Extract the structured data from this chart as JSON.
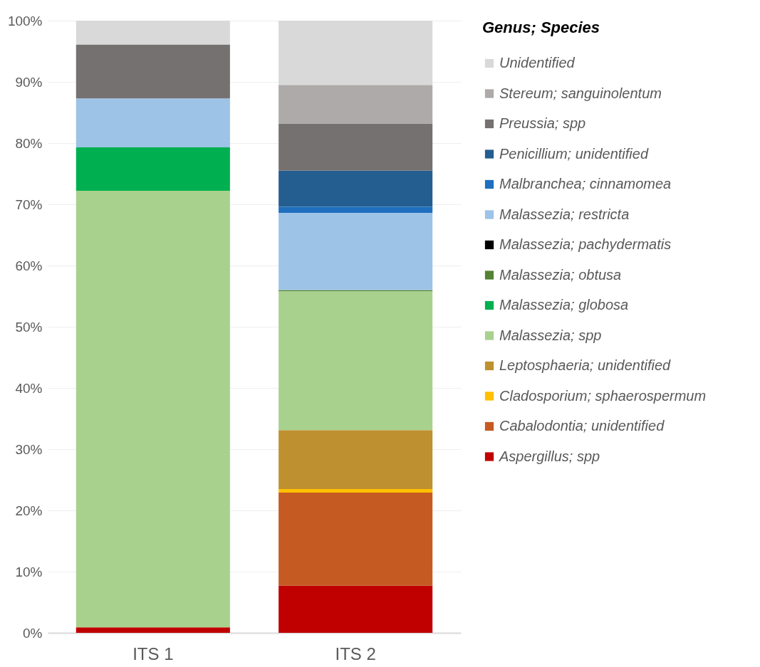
{
  "chart_data": {
    "type": "bar",
    "stacked": true,
    "categories": [
      "ITS 1",
      "ITS 2"
    ],
    "legend_title": "Genus; Species",
    "legend": "right",
    "grid": "y",
    "ylim": [
      0,
      100
    ],
    "yticks": [
      {
        "value": 0,
        "label": "0%"
      },
      {
        "value": 10,
        "label": "10%"
      },
      {
        "value": 20,
        "label": "20%"
      },
      {
        "value": 30,
        "label": "30%"
      },
      {
        "value": 40,
        "label": "40%"
      },
      {
        "value": 50,
        "label": "50%"
      },
      {
        "value": 60,
        "label": "60%"
      },
      {
        "value": 70,
        "label": "70%"
      },
      {
        "value": 80,
        "label": "80%"
      },
      {
        "value": 90,
        "label": "90%"
      },
      {
        "value": 100,
        "label": "100%"
      }
    ],
    "series": [
      {
        "name": "Aspergillus; spp",
        "color": "#c00000",
        "values": [
          0.9,
          7.7
        ]
      },
      {
        "name": "Cabalodontia; unidentified",
        "color": "#c55a22",
        "values": [
          0,
          15.2
        ]
      },
      {
        "name": "Cladosporium; sphaerospermum",
        "color": "#ffc000",
        "values": [
          0,
          0.6
        ]
      },
      {
        "name": "Leptosphaeria; unidentified",
        "color": "#bf9030",
        "values": [
          0,
          9.6
        ]
      },
      {
        "name": "Malassezia; spp",
        "color": "#a9d18e",
        "values": [
          71.3,
          22.7
        ]
      },
      {
        "name": "Malassezia; globosa",
        "color": "#00b050",
        "values": [
          7.1,
          0
        ]
      },
      {
        "name": "Malassezia; obtusa",
        "color": "#548235",
        "values": [
          0,
          0.2
        ]
      },
      {
        "name": "Malassezia; pachydermatis",
        "color": "#000000",
        "values": [
          0,
          0
        ]
      },
      {
        "name": "Malassezia; restricta",
        "color": "#9dc3e6",
        "values": [
          8.0,
          12.6
        ]
      },
      {
        "name": "Malbranchea; cinnamomea",
        "color": "#1f6fbf",
        "values": [
          0,
          1.0
        ]
      },
      {
        "name": "Penicillium; unidentified",
        "color": "#245e91",
        "values": [
          0,
          5.9
        ]
      },
      {
        "name": "Preussia; spp",
        "color": "#757171",
        "values": [
          8.8,
          7.7
        ]
      },
      {
        "name": "Stereum; sanguinolentum",
        "color": "#aeaaaa",
        "values": [
          0,
          6.3
        ]
      },
      {
        "name": "Unidentified",
        "color": "#d9d9d9",
        "values": [
          3.9,
          10.5
        ]
      }
    ]
  }
}
